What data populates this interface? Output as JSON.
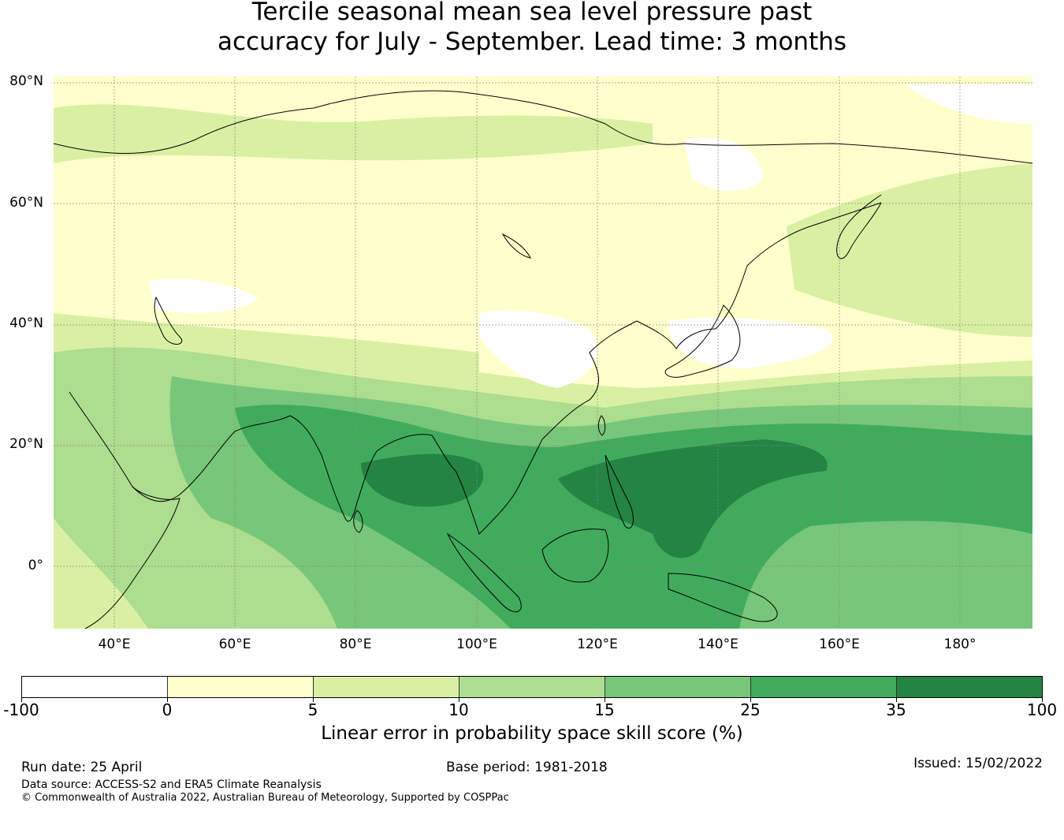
{
  "title": {
    "line1": "Tercile seasonal mean sea level pressure past",
    "line2": "accuracy for July - September. Lead time: 3 months"
  },
  "map": {
    "extent": {
      "lon_min": 30,
      "lon_max": 192,
      "lat_min": -10,
      "lat_max": 81
    },
    "lat_labels": [
      "80°N",
      "60°N",
      "40°N",
      "20°N",
      "0°"
    ],
    "lat_values": [
      80,
      60,
      40,
      20,
      0
    ],
    "lon_labels": [
      "40°E",
      "60°E",
      "80°E",
      "100°E",
      "120°E",
      "140°E",
      "160°E",
      "180°"
    ],
    "lon_values": [
      40,
      60,
      80,
      100,
      120,
      140,
      160,
      180
    ],
    "gridlines": true,
    "coastline_color": "#000000"
  },
  "colorbar": {
    "ticks": [
      "-100",
      "0",
      "5",
      "10",
      "15",
      "25",
      "35",
      "100"
    ],
    "colors": [
      "#ffffff",
      "#ffffcc",
      "#d9f0a3",
      "#addd8e",
      "#78c679",
      "#41ab5d",
      "#238443"
    ],
    "label": "Linear error in probability space skill score (%)"
  },
  "footer": {
    "run_date": "Run date: 25 April",
    "base_period": "Base period: 1981-2018",
    "issued": "Issued: 15/02/2022",
    "data_source": "Data source: ACCESS-S2 and ERA5 Climate Reanalysis",
    "copyright": "© Commonwealth of Australia 2022, Australian Bureau of Meteorology, Supported by COSPPac"
  }
}
